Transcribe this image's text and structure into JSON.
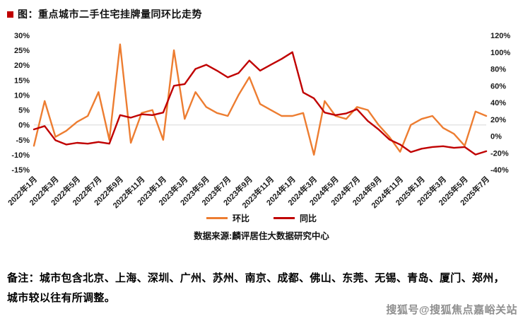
{
  "title": "图：重点城市二手住宅挂牌量同环比走势",
  "chart_data": {
    "type": "line",
    "x_tick_labels": [
      "2022年1月",
      "2022年3月",
      "2022年5月",
      "2022年7月",
      "2022年9月",
      "2022年11月",
      "2023年1月",
      "2023年3月",
      "2023年5月",
      "2023年7月",
      "2023年9月",
      "2023年11月",
      "2024年1月",
      "2024年3月",
      "2024年5月",
      "2024年7月",
      "2024年9月",
      "2024年11月",
      "2025年1月",
      "2025年3月",
      "2025年5月",
      "2025年7月"
    ],
    "points_per_label": 2,
    "series": [
      {
        "name": "环比",
        "axis": "left",
        "color": "#ED7D31",
        "values": [
          -7,
          8,
          -4,
          -2,
          1,
          3,
          11,
          -5,
          27,
          -6,
          4,
          5,
          -5,
          25,
          2,
          11,
          6,
          4,
          3,
          10,
          16,
          7,
          5,
          3,
          3,
          4,
          -10,
          8,
          3,
          2,
          6,
          5,
          0,
          -4,
          -9,
          0,
          2,
          3,
          -1,
          -3,
          -7,
          4.5,
          3
        ]
      },
      {
        "name": "同比",
        "axis": "right",
        "color": "#C00000",
        "values": [
          8,
          12,
          -5,
          -10,
          -8,
          -9,
          -7,
          -9,
          25,
          22,
          26,
          25,
          28,
          60,
          62,
          80,
          85,
          78,
          70,
          75,
          90,
          78,
          85,
          92,
          100,
          52,
          45,
          28,
          25,
          27,
          32,
          18,
          8,
          -4,
          -10,
          -19,
          -15,
          -13,
          -12,
          -14,
          -13,
          -22,
          -18
        ]
      }
    ],
    "left_axis": {
      "min": -15,
      "max": 30,
      "ticks": [
        "30%",
        "25%",
        "20%",
        "15%",
        "10%",
        "5%",
        "0%",
        "-5%",
        "-10%",
        "-15%"
      ]
    },
    "right_axis": {
      "min": -40,
      "max": 120,
      "ticks": [
        "120%",
        "100%",
        "80%",
        "60%",
        "40%",
        "20%",
        "0%",
        "-20%",
        "-40%"
      ]
    },
    "legend_position": "bottom",
    "grid": "zero-line-only",
    "source": "数据来源:麟评居住大数据研究中心"
  },
  "notes": {
    "line1": "备注：城市包含北京、上海、深圳、广州、苏州、南京、成都、佛山、东莞、无锡、青岛、厦门、郑州，",
    "line2": "城市较以往有所调整。"
  },
  "watermark": "搜狐号@搜狐焦点嘉峪关站"
}
